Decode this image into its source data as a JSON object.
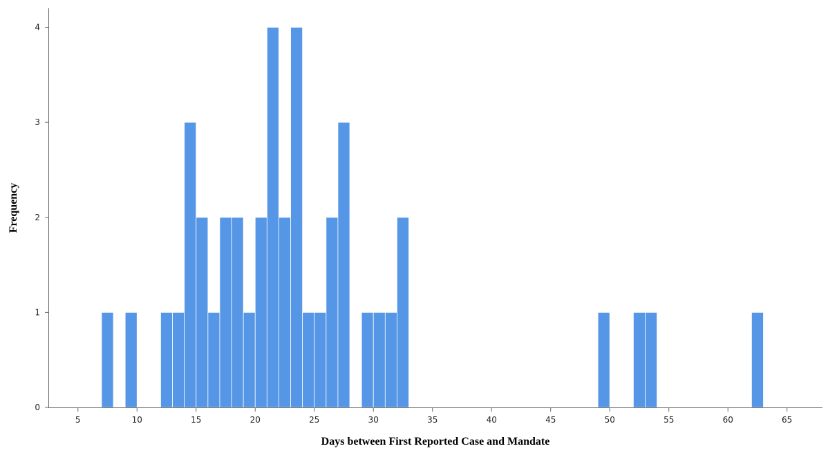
{
  "chart_data": {
    "type": "bar",
    "title": "",
    "xlabel": "Days between First Reported Case and Mandate",
    "ylabel": "Frequency",
    "bin_width": 1,
    "xlim": [
      2.5,
      68
    ],
    "ylim": [
      0,
      4.2
    ],
    "x_ticks": [
      5,
      10,
      15,
      20,
      25,
      30,
      35,
      40,
      45,
      50,
      55,
      60,
      65
    ],
    "y_ticks": [
      0,
      1,
      2,
      3,
      4
    ],
    "grid": false,
    "bar_color": "#5596e6",
    "bins": [
      {
        "start": 7,
        "count": 1
      },
      {
        "start": 9,
        "count": 1
      },
      {
        "start": 12,
        "count": 1
      },
      {
        "start": 13,
        "count": 1
      },
      {
        "start": 14,
        "count": 3
      },
      {
        "start": 15,
        "count": 2
      },
      {
        "start": 16,
        "count": 1
      },
      {
        "start": 17,
        "count": 2
      },
      {
        "start": 18,
        "count": 2
      },
      {
        "start": 19,
        "count": 1
      },
      {
        "start": 20,
        "count": 2
      },
      {
        "start": 21,
        "count": 4
      },
      {
        "start": 22,
        "count": 2
      },
      {
        "start": 23,
        "count": 4
      },
      {
        "start": 24,
        "count": 1
      },
      {
        "start": 25,
        "count": 1
      },
      {
        "start": 26,
        "count": 2
      },
      {
        "start": 27,
        "count": 3
      },
      {
        "start": 29,
        "count": 1
      },
      {
        "start": 30,
        "count": 1
      },
      {
        "start": 31,
        "count": 1
      },
      {
        "start": 32,
        "count": 2
      },
      {
        "start": 49,
        "count": 1
      },
      {
        "start": 52,
        "count": 1
      },
      {
        "start": 53,
        "count": 1
      },
      {
        "start": 62,
        "count": 1
      }
    ]
  }
}
